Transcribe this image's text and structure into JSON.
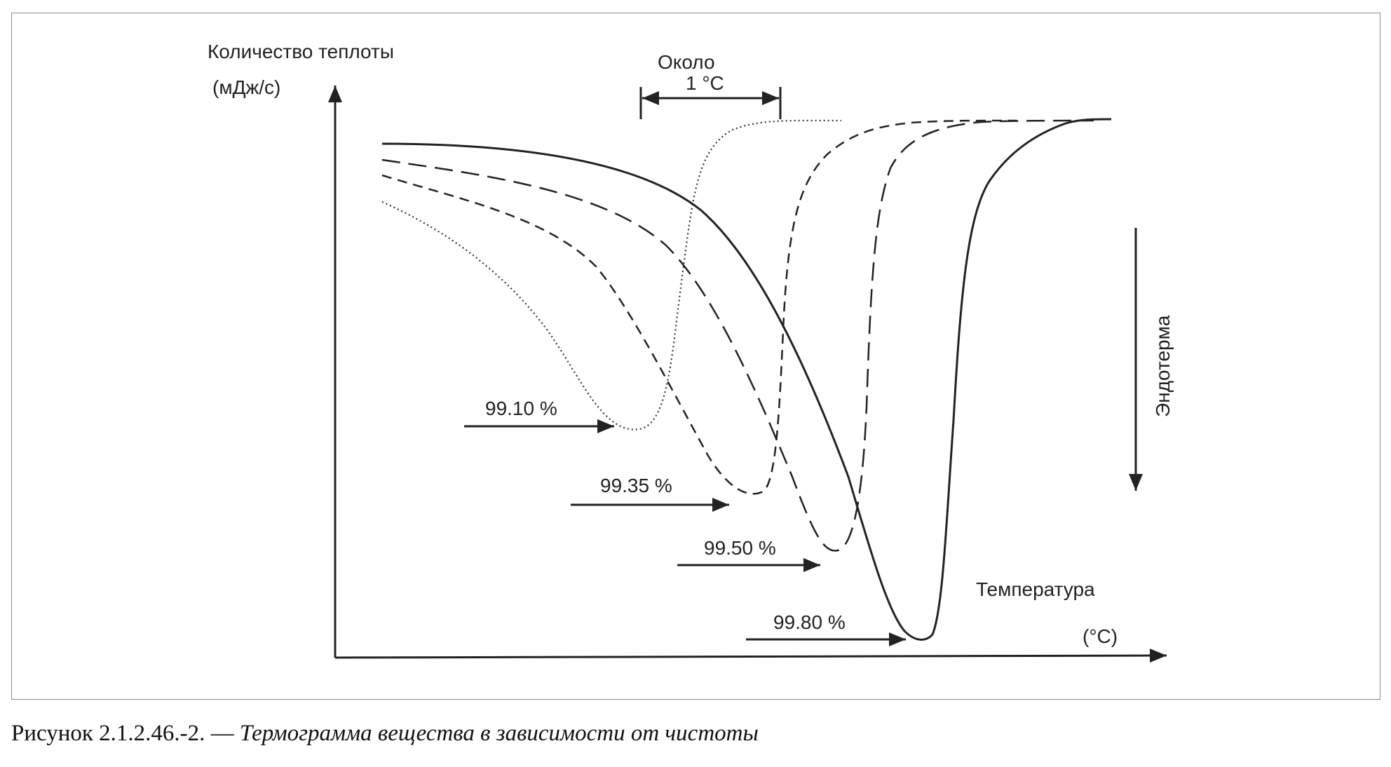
{
  "figure": {
    "caption_prefix": "Рисунок 2.1.2.46.-2. — ",
    "caption_title": "Термограмма вещества в зависимости от чистоты"
  },
  "chart_data": {
    "type": "line",
    "ylabel_line1": "Количество теплоты",
    "ylabel_line2": "(мДж/с)",
    "xlabel_line1": "Температура",
    "xlabel_line2": "(°C)",
    "endotherm_label": "Эндотерма",
    "scale_note_line1": "Около",
    "scale_note_line2": "1 °C",
    "series": [
      {
        "name": "99.10 %",
        "style": "dotted",
        "peak_depth": 0.72
      },
      {
        "name": "99.35 %",
        "style": "short-dash",
        "peak_depth": 0.84
      },
      {
        "name": "99.50 %",
        "style": "long-dash",
        "peak_depth": 0.92
      },
      {
        "name": "99.80 %",
        "style": "solid",
        "peak_depth": 1.0
      }
    ],
    "colors": {
      "line": "#222222"
    }
  }
}
